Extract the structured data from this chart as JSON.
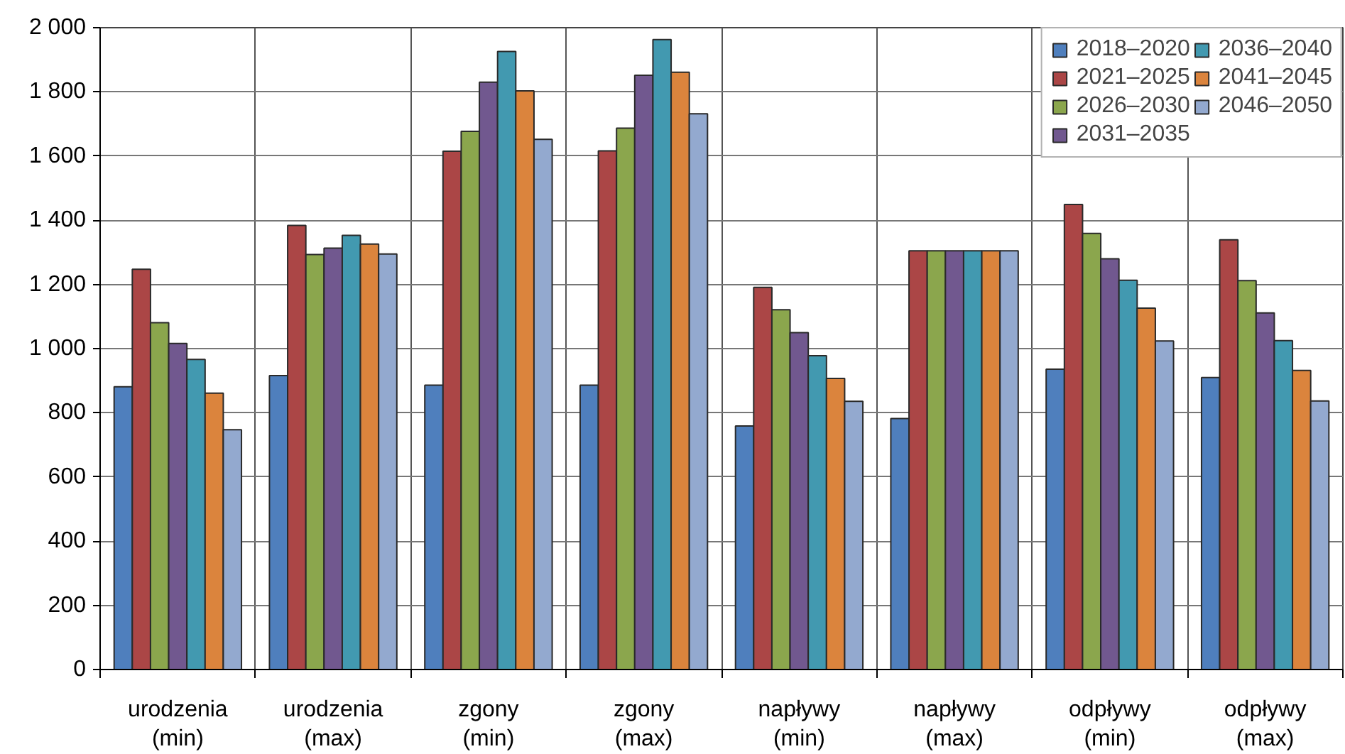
{
  "chart_data": {
    "type": "bar",
    "categories": [
      "urodzenia (min)",
      "urodzenia (max)",
      "zgony (min)",
      "zgony (max)",
      "napływy (min)",
      "napływy (max)",
      "odpływy (min)",
      "odpływy (max)"
    ],
    "series": [
      {
        "name": "2018–2020",
        "color": "#4f7fbd",
        "values": [
          881,
          916,
          886,
          886,
          759,
          782,
          936,
          910
        ]
      },
      {
        "name": "2021–2025",
        "color": "#ab4646",
        "values": [
          1247,
          1384,
          1615,
          1616,
          1191,
          1305,
          1449,
          1339
        ]
      },
      {
        "name": "2026–2030",
        "color": "#8ba64d",
        "values": [
          1081,
          1293,
          1677,
          1687,
          1121,
          1305,
          1359,
          1212
        ]
      },
      {
        "name": "2031–2035",
        "color": "#71588f",
        "values": [
          1016,
          1313,
          1830,
          1852,
          1050,
          1305,
          1280,
          1111
        ]
      },
      {
        "name": "2036–2040",
        "color": "#4299b0",
        "values": [
          966,
          1353,
          1926,
          1963,
          978,
          1305,
          1213,
          1025
        ]
      },
      {
        "name": "2041–2045",
        "color": "#db843d",
        "values": [
          861,
          1326,
          1803,
          1861,
          907,
          1305,
          1126,
          932
        ]
      },
      {
        "name": "2046–2050",
        "color": "#93a9cf",
        "values": [
          747,
          1295,
          1652,
          1732,
          836,
          1305,
          1024,
          837
        ]
      }
    ],
    "ylim": [
      0,
      2000
    ],
    "yticks": [
      0,
      200,
      400,
      600,
      800,
      {
        "value": 1000,
        "label": "1 000"
      },
      {
        "value": 1200,
        "label": "1 200"
      },
      {
        "value": 1400,
        "label": "1 400"
      },
      {
        "value": 1600,
        "label": "1 600"
      },
      {
        "value": 1800,
        "label": "1 800"
      },
      {
        "value": 2000,
        "label": "2 000"
      }
    ],
    "grid": true,
    "legend": "top right"
  }
}
